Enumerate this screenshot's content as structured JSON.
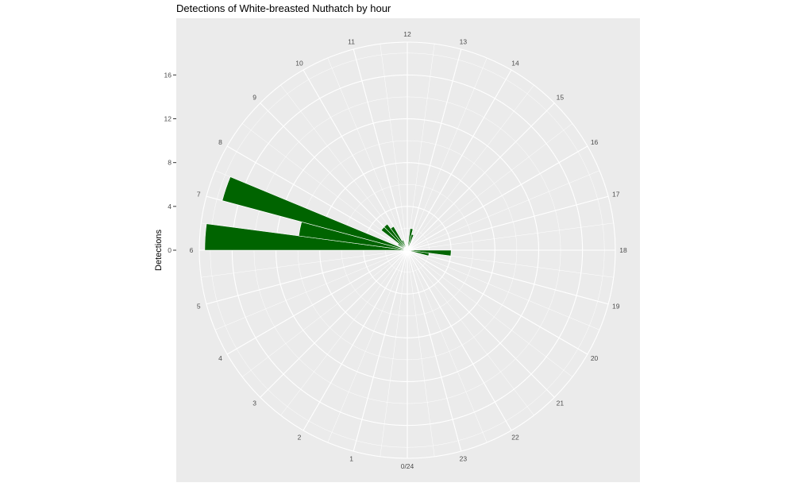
{
  "chart_data": {
    "type": "bar",
    "coord": "polar",
    "title": "Detections of White-breasted Nuthatch by hour",
    "ylabel": "Detections",
    "xlabel": "",
    "y_ticks": [
      0,
      4,
      8,
      12,
      16
    ],
    "ylim": [
      0,
      19
    ],
    "hour_labels": [
      "0/24",
      "1",
      "2",
      "3",
      "4",
      "5",
      "6",
      "7",
      "8",
      "9",
      "10",
      "11",
      "12",
      "13",
      "14",
      "15",
      "16",
      "17",
      "18",
      "19",
      "20",
      "21",
      "22",
      "23"
    ],
    "x": [
      0.0,
      0.5,
      1.0,
      1.5,
      2.0,
      2.5,
      3.0,
      3.5,
      4.0,
      4.5,
      5.0,
      5.5,
      6.0,
      6.5,
      7.0,
      7.5,
      8.0,
      8.5,
      9.0,
      9.5,
      10.0,
      10.5,
      11.0,
      11.5,
      12.0,
      12.5,
      13.0,
      13.5,
      14.0,
      14.5,
      15.0,
      15.5,
      16.0,
      16.5,
      17.0,
      17.5,
      18.0,
      18.5,
      19.0,
      19.5,
      20.0,
      20.5,
      21.0,
      21.5,
      22.0,
      22.5,
      23.0,
      23.5
    ],
    "values": [
      0,
      0,
      0,
      0,
      0,
      0,
      0,
      0,
      0,
      0,
      0,
      0.5,
      18.5,
      10,
      17.5,
      0.5,
      1,
      3,
      3,
      2.5,
      1,
      0,
      0,
      0,
      0,
      2,
      1.5,
      0,
      0,
      0,
      0,
      0,
      0,
      0,
      0,
      0,
      4,
      2,
      0,
      0,
      0,
      0,
      0,
      0,
      0,
      0,
      0,
      0
    ],
    "bin_width_hours": 0.5,
    "bar_color": "#006400",
    "panel_color": "#ebebeb",
    "grid_color": "#ffffff"
  }
}
